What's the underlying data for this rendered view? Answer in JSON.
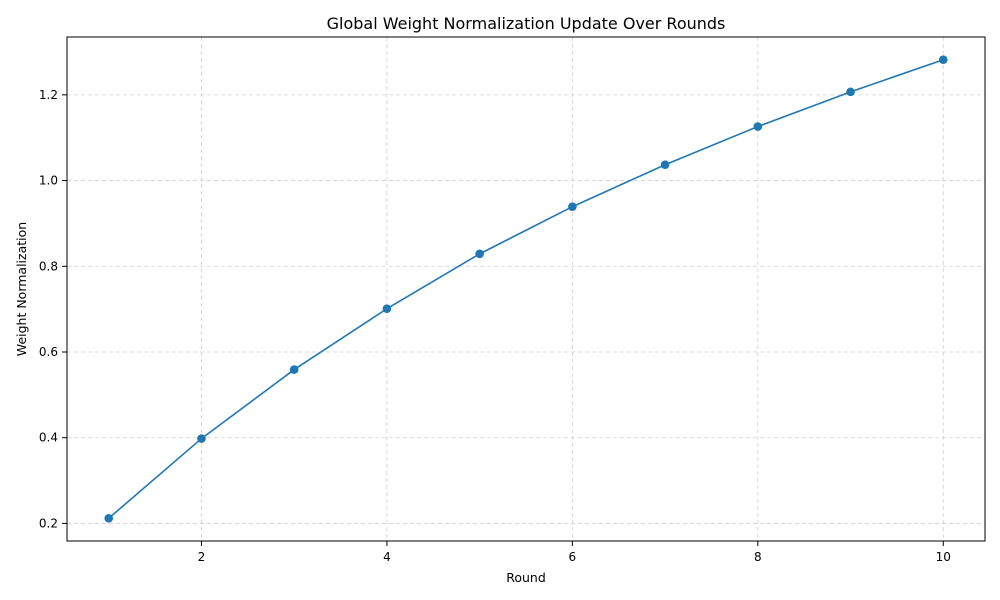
{
  "chart_data": {
    "type": "line",
    "title": "Global Weight Normalization Update Over Rounds",
    "xlabel": "Round",
    "ylabel": "Weight Normalization",
    "x": [
      1,
      2,
      3,
      4,
      5,
      6,
      7,
      8,
      9,
      10
    ],
    "series": [
      {
        "values": [
          0.212,
          0.398,
          0.559,
          0.701,
          0.829,
          0.939,
          1.037,
          1.126,
          1.207,
          1.282
        ]
      }
    ],
    "xlim": [
      0.55,
      10.45
    ],
    "ylim": [
      0.159,
      1.335
    ],
    "xticks": [
      2,
      4,
      6,
      8,
      10
    ],
    "yticks": [
      0.2,
      0.4,
      0.6,
      0.8,
      1.0,
      1.2
    ],
    "xtick_labels": [
      "2",
      "4",
      "6",
      "8",
      "10"
    ],
    "ytick_labels": [
      "0.2",
      "0.4",
      "0.6",
      "0.8",
      "1.0",
      "1.2"
    ],
    "grid": true,
    "line_color": "#1f77b4",
    "marker": "circle"
  }
}
